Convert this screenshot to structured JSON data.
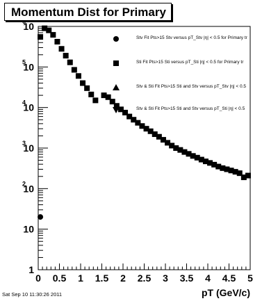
{
  "title": "Momentum Dist for Primary",
  "timestamp": "Sat Sep 10 11:30:26 2011",
  "legend": [
    {
      "marker": "circle",
      "label": "Stv Fit Pts>15 Stv versus pT_Stv |η| < 0.5 for Primary tr"
    },
    {
      "marker": "square",
      "label": "Sti Fit Pts>15 Sti versus pT_Sti |η| < 0.5 for Primary tr"
    },
    {
      "marker": "triangle-up",
      "label": "Stv & Sti Fit Pts>15 Sti and Stv versus pT_Stv |η| < 0.5"
    },
    {
      "marker": "triangle-down",
      "label": "Stv & Sti Fit Pts>15 Sti and Stv versus pT_Sti |η| < 0.5"
    }
  ],
  "chart_data": {
    "type": "scatter",
    "title": "Momentum Dist for Primary",
    "xlabel": "pT (GeV/c)",
    "ylabel": "",
    "xlim": [
      0,
      5
    ],
    "ylim": [
      1,
      1000000
    ],
    "yscale": "log",
    "x_ticks": [
      "0",
      "0.5",
      "1",
      "1.5",
      "2",
      "2.5",
      "3",
      "3.5",
      "4",
      "4.5",
      "5"
    ],
    "y_ticks": [
      {
        "base": "1",
        "exp": ""
      },
      {
        "base": "10",
        "exp": ""
      },
      {
        "base": "10",
        "exp": "2"
      },
      {
        "base": "10",
        "exp": "3"
      },
      {
        "base": "10",
        "exp": "4"
      },
      {
        "base": "10",
        "exp": "5"
      },
      {
        "base": "10",
        "exp": "6"
      }
    ],
    "grid": false,
    "legend_position": "top-right",
    "series": [
      {
        "marker": "circle",
        "x": [
          0.05
        ],
        "y": [
          20
        ]
      },
      {
        "marker": "square",
        "x": [
          0.05,
          0.15,
          0.25,
          0.35,
          0.45,
          0.55,
          0.65,
          0.75,
          0.85,
          0.95,
          1.05,
          1.15,
          1.25,
          1.35,
          1.55,
          1.65,
          1.75,
          1.85,
          1.95,
          2.05,
          2.15,
          2.25,
          2.35,
          2.45,
          2.55,
          2.65,
          2.75,
          2.85,
          2.95,
          3.05,
          3.15,
          3.25,
          3.35,
          3.45,
          3.55,
          3.65,
          3.75,
          3.85,
          3.95,
          4.05,
          4.15,
          4.25,
          4.35,
          4.45,
          4.55,
          4.65,
          4.75,
          4.85,
          4.95
        ],
        "y": [
          550000,
          900000,
          800000,
          620000,
          420000,
          280000,
          190000,
          130000,
          85000,
          60000,
          40000,
          30000,
          21000,
          15000,
          20000,
          18000,
          14000,
          11000,
          9000,
          7500,
          6000,
          5000,
          4200,
          3500,
          3000,
          2600,
          2200,
          1900,
          1600,
          1350,
          1150,
          1000,
          900,
          800,
          720,
          640,
          580,
          520,
          470,
          430,
          390,
          350,
          320,
          300,
          280,
          260,
          240,
          190,
          210
        ]
      }
    ]
  }
}
